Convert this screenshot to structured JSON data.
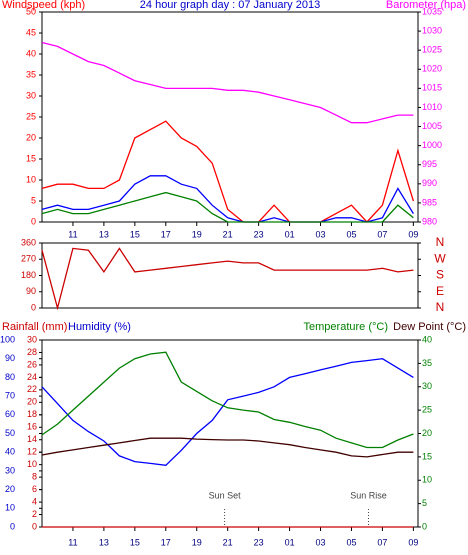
{
  "chart_data": [
    {
      "type": "line",
      "title": "24 hour graph day : 07 January 2013",
      "title_color": "#0000cc",
      "xlim": [
        0,
        24.3
      ],
      "xticks": [
        {
          "value": 2,
          "label": "11"
        },
        {
          "value": 4,
          "label": "13"
        },
        {
          "value": 6,
          "label": "15"
        },
        {
          "value": 8,
          "label": "17"
        },
        {
          "value": 10,
          "label": "19"
        },
        {
          "value": 12,
          "label": "21"
        },
        {
          "value": 14,
          "label": "23"
        },
        {
          "value": 16,
          "label": "01"
        },
        {
          "value": 18,
          "label": "03"
        },
        {
          "value": 20,
          "label": "05"
        },
        {
          "value": 22,
          "label": "07"
        },
        {
          "value": 24,
          "label": "09"
        }
      ],
      "x": [
        0,
        1,
        2,
        3,
        4,
        5,
        6,
        7,
        8,
        9,
        10,
        11,
        12,
        13,
        14,
        15,
        16,
        17,
        18,
        19,
        20,
        21,
        22,
        23,
        24
      ],
      "axes": [
        {
          "label": "Windspeed (kph)",
          "color": "#ff0000",
          "lim": [
            0,
            50
          ],
          "ticks": [
            0,
            5,
            10,
            15,
            20,
            25,
            30,
            35,
            40,
            45,
            50
          ]
        },
        {
          "label": "Barometer (hpa)",
          "color": "#ff00ff",
          "lim": [
            980,
            1035
          ],
          "ticks": [
            980,
            985,
            990,
            995,
            1000,
            1005,
            1010,
            1015,
            1020,
            1025,
            1030,
            1035
          ]
        }
      ],
      "series": [
        {
          "color": "#ff0000",
          "axis": 0,
          "values": [
            8,
            9,
            9,
            8,
            8,
            10,
            20,
            22,
            24,
            20,
            18,
            14,
            3,
            0,
            0,
            4,
            0,
            0,
            0,
            2,
            4,
            0,
            4,
            17,
            5
          ]
        },
        {
          "color": "#0000ff",
          "axis": 0,
          "values": [
            3,
            4,
            3,
            3,
            4,
            5,
            9,
            11,
            11,
            9,
            8,
            4,
            1,
            0,
            0,
            1,
            0,
            0,
            0,
            1,
            1,
            0,
            1,
            8,
            2
          ]
        },
        {
          "color": "#008000",
          "axis": 0,
          "values": [
            2,
            3,
            2,
            2,
            3,
            4,
            5,
            6,
            7,
            6,
            5,
            2,
            0,
            0,
            0,
            0,
            0,
            0,
            0,
            0,
            0,
            0,
            0,
            4,
            1
          ]
        },
        {
          "color": "#ff00ff",
          "axis": 1,
          "values": [
            1027,
            1026,
            1024,
            1022,
            1021,
            1019,
            1017,
            1016,
            1015,
            1015,
            1015,
            1015,
            1014.5,
            1014.5,
            1014,
            1013,
            1012,
            1011,
            1010,
            1008,
            1006,
            1006,
            1007,
            1008,
            1008
          ]
        }
      ]
    },
    {
      "type": "line",
      "xlim": [
        0,
        24.3
      ],
      "x": [
        0,
        1,
        2,
        3,
        4,
        5,
        6,
        7,
        8,
        9,
        10,
        11,
        12,
        13,
        14,
        15,
        16,
        17,
        18,
        19,
        20,
        21,
        22,
        23,
        24
      ],
      "axes": [
        {
          "color": "#cc0000",
          "lim": [
            0,
            360
          ],
          "ticks": [
            0,
            90,
            180,
            270,
            360
          ]
        },
        {
          "color": "#cc0000",
          "lim": [
            0,
            360
          ],
          "ticks": [
            {
              "value": 0,
              "label": "N"
            },
            {
              "value": 90,
              "label": "E"
            },
            {
              "value": 180,
              "label": "S"
            },
            {
              "value": 270,
              "label": "W"
            },
            {
              "value": 360,
              "label": "N"
            }
          ]
        }
      ],
      "series": [
        {
          "color": "#cc0000",
          "axis": 0,
          "values": [
            320,
            0,
            330,
            320,
            200,
            330,
            200,
            210,
            220,
            230,
            240,
            250,
            260,
            250,
            250,
            210,
            210,
            210,
            210,
            210,
            210,
            210,
            220,
            200,
            210
          ]
        }
      ]
    },
    {
      "type": "line",
      "xlim": [
        0,
        24.3
      ],
      "xticks": [
        {
          "value": 2,
          "label": "11"
        },
        {
          "value": 4,
          "label": "13"
        },
        {
          "value": 6,
          "label": "15"
        },
        {
          "value": 8,
          "label": "17"
        },
        {
          "value": 10,
          "label": "19"
        },
        {
          "value": 12,
          "label": "21"
        },
        {
          "value": 14,
          "label": "23"
        },
        {
          "value": 16,
          "label": "01"
        },
        {
          "value": 18,
          "label": "03"
        },
        {
          "value": 20,
          "label": "05"
        },
        {
          "value": 22,
          "label": "07"
        },
        {
          "value": 24,
          "label": "09"
        }
      ],
      "x": [
        0,
        1,
        2,
        3,
        4,
        5,
        6,
        7,
        8,
        9,
        10,
        11,
        12,
        13,
        14,
        15,
        16,
        17,
        18,
        19,
        20,
        21,
        22,
        23,
        24
      ],
      "axes": [
        {
          "label": "Humidity (%)",
          "color": "#0000cc",
          "lim": [
            0,
            100
          ],
          "ticks": [
            0,
            10,
            20,
            30,
            40,
            50,
            60,
            70,
            80,
            90,
            100
          ]
        },
        {
          "label": "Rainfall (mm)",
          "color": "#cc0000",
          "lim": [
            0,
            30
          ],
          "ticks": [
            0,
            2,
            4,
            6,
            8,
            10,
            12,
            14,
            16,
            18,
            20,
            22,
            24,
            26,
            28,
            30
          ]
        },
        {
          "label": "Temperature (°C)",
          "color": "#008000",
          "lim": [
            0,
            40
          ],
          "ticks": [
            0,
            5,
            10,
            15,
            20,
            25,
            30,
            35,
            40
          ]
        },
        {
          "label": "Dew Point (°C)",
          "color": "#400000",
          "lim": [
            0,
            40
          ],
          "ticks": []
        }
      ],
      "series": [
        {
          "color": "#cc0000",
          "axis": 1,
          "values": [
            0,
            0,
            0,
            0,
            0,
            0,
            0,
            0,
            0,
            0,
            0,
            0,
            0,
            0,
            0,
            0,
            0,
            0,
            0,
            0,
            0,
            0,
            0,
            0,
            0
          ]
        },
        {
          "color": "#0000ff",
          "axis": 0,
          "values": [
            75,
            66,
            57,
            51,
            46,
            38,
            35,
            34,
            33,
            41,
            50,
            57,
            68,
            70,
            72,
            75,
            80,
            82,
            84,
            86,
            88,
            89,
            90,
            85,
            80
          ]
        },
        {
          "color": "#008000",
          "axis": 2,
          "values": [
            19.7,
            22,
            25,
            28,
            31,
            34,
            36,
            37,
            37.4,
            31,
            29,
            27,
            25.5,
            25,
            24.6,
            23,
            22.4,
            21.5,
            20.7,
            19,
            18,
            17,
            17,
            18.6,
            19.9
          ]
        },
        {
          "color": "#400000",
          "axis": 3,
          "values": [
            15.4,
            16,
            16.5,
            17,
            17.5,
            18,
            18.5,
            19,
            19,
            19,
            18.8,
            18.7,
            18.6,
            18.6,
            18.4,
            18,
            17.6,
            17,
            16.5,
            16,
            15.2,
            15,
            15.5,
            16,
            16
          ]
        }
      ],
      "annotations": [
        {
          "text": "Sun Set",
          "x": 11.8
        },
        {
          "text": "Sun Rise",
          "x": 21.1
        }
      ]
    }
  ]
}
